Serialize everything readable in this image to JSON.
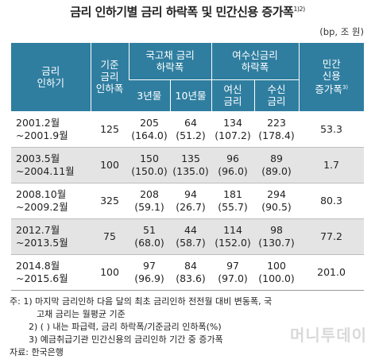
{
  "title": "금리 인하기별 금리 하락폭 및 민간신용 증가폭",
  "title_sup": "1)2)",
  "unit": "(bp, 조 원)",
  "headers": {
    "period": "금리\n인하기",
    "base_cut": "기준\n금리\n인하폭",
    "gov_bond": "국고채 금리\n하락폭",
    "gov_3y": "3년물",
    "gov_10y": "10년물",
    "deposit_group": "여수신금리\n하락폭",
    "loan_rate": "여신\n금리",
    "deposit_rate": "수신\n금리",
    "credit": "민간\n신용\n증가폭",
    "credit_sup": "3)"
  },
  "rows": [
    {
      "period": "2001.2월\n~2001.9월",
      "base": "125",
      "g3": "205\n(164.0)",
      "g10": "64\n(51.2)",
      "loan": "134\n(107.2)",
      "dep": "223\n(178.4)",
      "credit": "53.3",
      "shade": false
    },
    {
      "period": "2003.5월\n~2004.11월",
      "base": "100",
      "g3": "150\n(150.0)",
      "g10": "135\n(135.0)",
      "loan": "96\n(96.0)",
      "dep": "89\n(89.0)",
      "credit": "1.7",
      "shade": true
    },
    {
      "period": "2008.10월\n~2009.2월",
      "base": "325",
      "g3": "208\n(59.1)",
      "g10": "94\n(26.7)",
      "loan": "181\n(55.7)",
      "dep": "294\n(90.5)",
      "credit": "80.3",
      "shade": false
    },
    {
      "period": "2012.7월\n~2013.5월",
      "base": "75",
      "g3": "51\n(68.0)",
      "g10": "44\n(58.7)",
      "loan": "114\n(152.0)",
      "dep": "98\n(130.7)",
      "credit": "77.2",
      "shade": true
    },
    {
      "period": "2014.8월\n~2015.6월",
      "base": "100",
      "g3": "97\n(96.9)",
      "g10": "84\n(83.6)",
      "loan": "97\n(97.0)",
      "dep": "100\n(100.0)",
      "credit": "201.0",
      "shade": false
    }
  ],
  "notes": {
    "n1a": "주: 1) 마지막 금리인하 다음 달의 최초 금리인하 전전월 대비 변동폭, 국",
    "n1b": "고채 금리는 월평균 기준",
    "n2": "2) ( ) 내는 파급력, 금리 하락폭/기준금리 인하폭(%)",
    "n3": "3) 예금취급기관 민간신용의 금리인하 기간 중 증가폭",
    "source": "자료: 한국은행"
  },
  "watermark": "머니투데이"
}
